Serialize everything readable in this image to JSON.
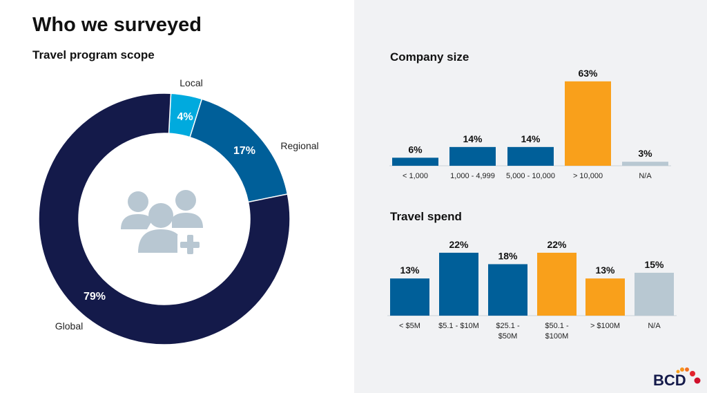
{
  "title": "Who we surveyed",
  "scope": {
    "subtitle": "Travel program scope"
  },
  "colors": {
    "blue": "#005f99",
    "orange": "#f9a01b",
    "gray": "#b8c8d2",
    "navy": "#141a4a",
    "cyan": "#00aade"
  },
  "logo": {
    "text": "BCD"
  },
  "icon": "people-group-add-icon",
  "chart_data": [
    {
      "type": "pie",
      "donut": true,
      "title": "Travel program scope",
      "categories": [
        "Local",
        "Regional",
        "Global"
      ],
      "values": [
        4,
        17,
        79
      ],
      "labels": [
        "4%",
        "17%",
        "79%"
      ],
      "colors": [
        "#00aade",
        "#005f99",
        "#141a4a"
      ]
    },
    {
      "type": "bar",
      "title": "Company size",
      "categories": [
        "< 1,000",
        "1,000 - 4,999",
        "5,000 - 10,000",
        "> 10,000",
        "N/A"
      ],
      "values": [
        6,
        14,
        14,
        63,
        3
      ],
      "labels": [
        "6%",
        "14%",
        "14%",
        "63%",
        "3%"
      ],
      "colors": [
        "#005f99",
        "#005f99",
        "#005f99",
        "#f9a01b",
        "#b8c8d2"
      ],
      "grid": false
    },
    {
      "type": "bar",
      "title": "Travel spend",
      "categories": [
        "< $5M",
        "$5.1 - $10M",
        "$25.1 - $50M",
        "$50.1 - $100M",
        "> $100M",
        "N/A"
      ],
      "category_lines": [
        [
          "< $5M"
        ],
        [
          "$5.1 - $10M"
        ],
        [
          "$25.1 -",
          "$50M"
        ],
        [
          "$50.1 -",
          "$100M"
        ],
        [
          "> $100M"
        ],
        [
          "N/A"
        ]
      ],
      "values": [
        13,
        22,
        18,
        22,
        13,
        15
      ],
      "labels": [
        "13%",
        "22%",
        "18%",
        "22%",
        "13%",
        "15%"
      ],
      "colors": [
        "#005f99",
        "#005f99",
        "#005f99",
        "#f9a01b",
        "#f9a01b",
        "#b8c8d2"
      ],
      "grid": false
    }
  ]
}
